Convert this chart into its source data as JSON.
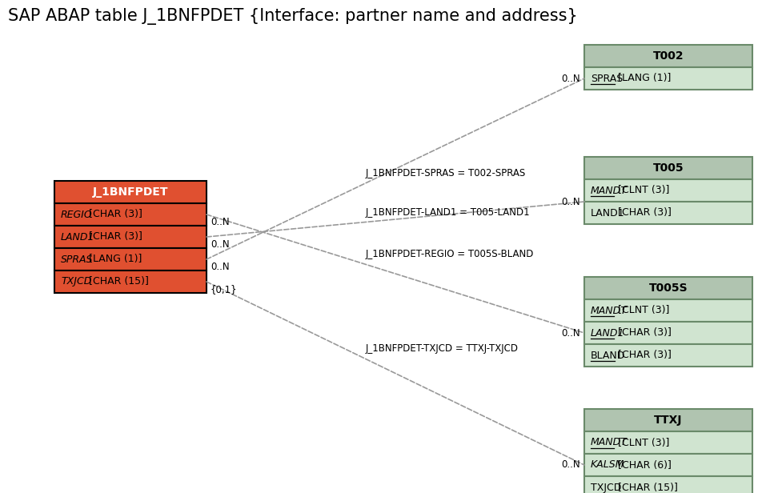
{
  "title": "SAP ABAP table J_1BNFPDET {Interface: partner name and address}",
  "title_fontsize": 15,
  "background_color": "#ffffff",
  "main_table": {
    "name": "J_1BNFPDET",
    "header_bg": "#e05030",
    "header_fg": "#ffffff",
    "row_bg": "#e05030",
    "row_fg": "#000000",
    "border_color": "#000000",
    "fields": [
      "REGIO [CHAR (3)]",
      "LAND1 [CHAR (3)]",
      "SPRAS [LANG (1)]",
      "TXJCD [CHAR (15)]"
    ]
  },
  "related_tables": [
    {
      "name": "T002",
      "header_bg": "#b0c4b0",
      "header_fg": "#000000",
      "row_bg": "#d0e4d0",
      "border_color": "#6a8a6a",
      "fields": [
        {
          "text": "SPRAS",
          "type": " [LANG (1)]",
          "underline": true,
          "italic": false
        }
      ]
    },
    {
      "name": "T005",
      "header_bg": "#b0c4b0",
      "header_fg": "#000000",
      "row_bg": "#d0e4d0",
      "border_color": "#6a8a6a",
      "fields": [
        {
          "text": "MANDT",
          "type": " [CLNT (3)]",
          "underline": true,
          "italic": true
        },
        {
          "text": "LAND1",
          "type": " [CHAR (3)]",
          "underline": false,
          "italic": false
        }
      ]
    },
    {
      "name": "T005S",
      "header_bg": "#b0c4b0",
      "header_fg": "#000000",
      "row_bg": "#d0e4d0",
      "border_color": "#6a8a6a",
      "fields": [
        {
          "text": "MANDT",
          "type": " [CLNT (3)]",
          "underline": true,
          "italic": true
        },
        {
          "text": "LAND1",
          "type": " [CHAR (3)]",
          "underline": true,
          "italic": true
        },
        {
          "text": "BLAND",
          "type": " [CHAR (3)]",
          "underline": true,
          "italic": false
        }
      ]
    },
    {
      "name": "TTXJ",
      "header_bg": "#b0c4b0",
      "header_fg": "#000000",
      "row_bg": "#d0e4d0",
      "border_color": "#6a8a6a",
      "fields": [
        {
          "text": "MANDT",
          "type": " [CLNT (3)]",
          "underline": true,
          "italic": true
        },
        {
          "text": "KALSM",
          "type": " [CHAR (6)]",
          "underline": false,
          "italic": true
        },
        {
          "text": "TXJCD",
          "type": " [CHAR (15)]",
          "underline": false,
          "italic": false
        }
      ]
    }
  ],
  "connections": [
    {
      "from_field": "SPRAS",
      "to_table_idx": 0,
      "label": "J_1BNFPDET-SPRAS = T002-SPRAS",
      "from_card": "0..N",
      "to_card": "0..N"
    },
    {
      "from_field": "LAND1",
      "to_table_idx": 1,
      "label": "J_1BNFPDET-LAND1 = T005-LAND1",
      "from_card": "0..N",
      "to_card": "0..N"
    },
    {
      "from_field": "REGIO",
      "to_table_idx": 2,
      "label": "J_1BNFPDET-REGIO = T005S-BLAND",
      "from_card": "0..N",
      "to_card": "0..N"
    },
    {
      "from_field": "TXJCD",
      "to_table_idx": 3,
      "label": "J_1BNFPDET-TXJCD = TTXJ-TXJCD",
      "from_card": "{0,1}",
      "to_card": "0..N"
    }
  ]
}
